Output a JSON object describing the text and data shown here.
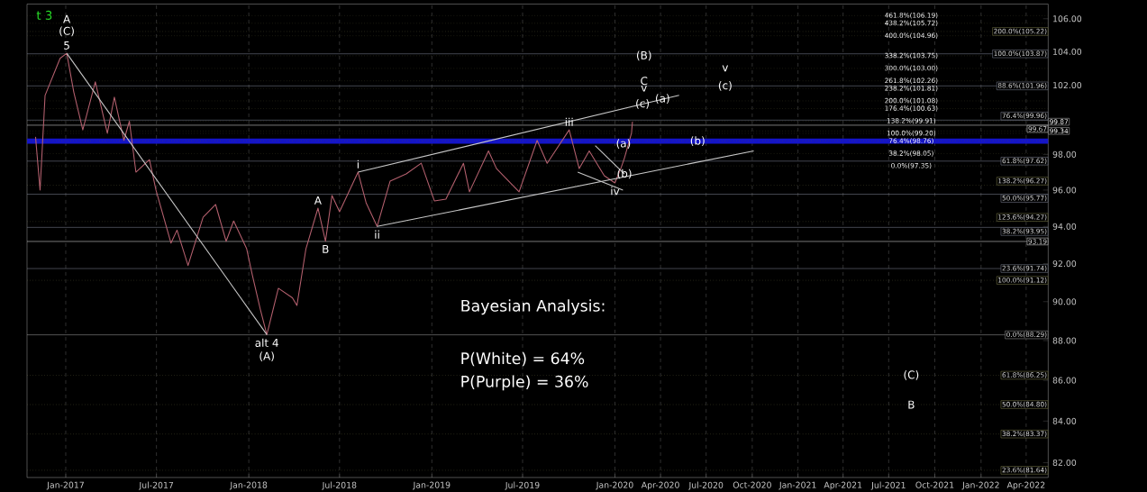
{
  "chart_data": {
    "type": "line",
    "log": true,
    "grid": "x",
    "xlim": [
      "2016-10-15",
      "2022-05-15"
    ],
    "ylim": [
      81.3,
      106.9
    ],
    "xticks": [
      {
        "value": "2017-01-01",
        "label": "Jan-2017"
      },
      {
        "value": "2017-07-01",
        "label": "Jul-2017"
      },
      {
        "value": "2018-01-01",
        "label": "Jan-2018"
      },
      {
        "value": "2018-07-01",
        "label": "Jul-2018"
      },
      {
        "value": "2019-01-01",
        "label": "Jan-2019"
      },
      {
        "value": "2019-07-01",
        "label": "Jul-2019"
      },
      {
        "value": "2020-01-01",
        "label": "Jan-2020"
      },
      {
        "value": "2020-04-01",
        "label": "Apr-2020"
      },
      {
        "value": "2020-07-01",
        "label": "Jul-2020"
      },
      {
        "value": "2020-10-01",
        "label": "Oct-2020"
      },
      {
        "value": "2021-01-01",
        "label": "Jan-2021"
      },
      {
        "value": "2021-04-01",
        "label": "Apr-2021"
      },
      {
        "value": "2021-07-01",
        "label": "Jul-2021"
      },
      {
        "value": "2021-10-01",
        "label": "Oct-2021"
      },
      {
        "value": "2022-01-01",
        "label": "Jan-2022"
      },
      {
        "value": "2022-04-01",
        "label": "Apr-2022"
      }
    ],
    "yticks": [
      {
        "value": 82,
        "label": "82.00"
      },
      {
        "value": 84,
        "label": "84.00"
      },
      {
        "value": 86,
        "label": "86.00"
      },
      {
        "value": 88,
        "label": "88.00"
      },
      {
        "value": 90,
        "label": "90.00"
      },
      {
        "value": 92,
        "label": "92.00"
      },
      {
        "value": 94,
        "label": "94.00"
      },
      {
        "value": 96,
        "label": "96.00"
      },
      {
        "value": 98,
        "label": "98.00"
      },
      {
        "value": 102,
        "label": "102.00"
      },
      {
        "value": 104,
        "label": "104.00"
      },
      {
        "value": 106,
        "label": "106.00"
      }
    ],
    "series": [
      {
        "color": "#b4606e",
        "x": [
          "2016-11-01",
          "2016-11-10",
          "2016-11-20",
          "2016-12-20",
          "2017-01-03",
          "2017-01-17",
          "2017-02-04",
          "2017-03-01",
          "2017-03-25",
          "2017-04-08",
          "2017-04-27",
          "2017-05-08",
          "2017-05-21",
          "2017-06-17",
          "2017-06-30",
          "2017-07-30",
          "2017-08-11",
          "2017-09-02",
          "2017-10-02",
          "2017-10-27",
          "2017-11-17",
          "2017-12-02",
          "2017-12-28",
          "2018-01-08",
          "2018-01-24",
          "2018-02-06",
          "2018-03-01",
          "2018-03-29",
          "2018-04-07",
          "2018-04-25",
          "2018-05-19",
          "2018-06-03",
          "2018-06-16",
          "2018-07-01",
          "2018-08-07",
          "2018-08-23",
          "2018-09-14",
          "2018-10-10",
          "2018-11-11",
          "2018-12-11",
          "2019-01-06",
          "2019-01-29",
          "2019-03-05",
          "2019-03-17",
          "2019-04-24",
          "2019-05-10",
          "2019-06-24",
          "2019-07-30",
          "2019-08-19",
          "2019-10-02",
          "2019-10-22",
          "2019-11-11",
          "2019-12-11",
          "2020-01-01",
          "2020-01-14",
          "2020-01-20",
          "2020-02-03",
          "2020-02-05"
        ],
        "values": [
          99.0,
          96.0,
          101.4,
          103.6,
          103.9,
          101.6,
          99.4,
          102.2,
          99.2,
          101.3,
          98.8,
          99.9,
          97.0,
          97.7,
          96.0,
          93.1,
          93.8,
          91.9,
          94.5,
          95.2,
          93.2,
          94.3,
          92.8,
          91.4,
          89.6,
          88.3,
          90.7,
          90.2,
          89.8,
          92.8,
          95.0,
          93.2,
          95.7,
          94.8,
          97.0,
          95.3,
          94.0,
          96.5,
          96.9,
          97.5,
          95.4,
          95.5,
          97.5,
          95.9,
          98.2,
          97.2,
          95.9,
          98.8,
          97.5,
          99.4,
          97.2,
          98.2,
          96.8,
          96.4,
          97.3,
          97.8,
          99.2,
          99.87
        ]
      },
      {
        "color": "#c8c8c8",
        "x": [
          "2017-01-03",
          "2018-02-06"
        ],
        "values": [
          103.9,
          88.3
        ]
      },
      {
        "color": "#c8c8c8",
        "x": [
          "2018-08-07",
          "2020-05-08"
        ],
        "values": [
          97.0,
          101.4
        ]
      },
      {
        "color": "#c8c8c8",
        "x": [
          "2018-09-14",
          "2020-10-04"
        ],
        "values": [
          94.0,
          98.2
        ]
      },
      {
        "color": "#c8c8c8",
        "x": [
          "2019-10-19",
          "2020-01-17"
        ],
        "values": [
          97.0,
          96.0
        ]
      },
      {
        "color": "#c8c8c8",
        "x": [
          "2019-11-23",
          "2020-01-20"
        ],
        "values": [
          98.5,
          96.9
        ]
      }
    ],
    "ref_lines": [
      {
        "axis": "y",
        "value": 106.19,
        "color": "#5a5a34",
        "line_style": "dotted"
      },
      {
        "axis": "y",
        "value": 105.72,
        "color": "#5a5a34",
        "line_style": "dotted"
      },
      {
        "axis": "y",
        "value": 104.96,
        "color": "#5a5a34",
        "line_style": "dotted"
      },
      {
        "axis": "y",
        "value": 103.75,
        "color": "#5a5a34",
        "line_style": "dotted"
      },
      {
        "axis": "y",
        "value": 103.0,
        "color": "#5a5a34",
        "line_style": "dotted"
      },
      {
        "axis": "y",
        "value": 102.26,
        "color": "#5a5a34",
        "line_style": "dotted"
      },
      {
        "axis": "y",
        "value": 101.81,
        "color": "#5a5a34",
        "line_style": "dotted"
      },
      {
        "axis": "y",
        "value": 101.08,
        "color": "#5a5a34",
        "line_style": "dotted"
      },
      {
        "axis": "y",
        "value": 100.63,
        "color": "#5a5a34",
        "line_style": "dotted"
      },
      {
        "axis": "y",
        "value": 99.91,
        "color": "#5a5a34",
        "line_style": "dotted"
      },
      {
        "axis": "y",
        "value": 99.34,
        "color": "#5a5a34",
        "line_style": "dotted"
      },
      {
        "axis": "y",
        "value": 99.2,
        "color": "#5a5a34",
        "line_style": "dotted"
      },
      {
        "axis": "y",
        "value": 98.76,
        "color": "#5a5a34",
        "line_style": "dotted"
      },
      {
        "axis": "y",
        "value": 98.05,
        "color": "#5a5a34",
        "line_style": "dotted"
      },
      {
        "axis": "y",
        "value": 97.35,
        "color": "#5a5a34",
        "line_style": "dotted"
      },
      {
        "axis": "y",
        "value": 105.22,
        "label": "200.0%(105.22)",
        "color": "#7a7a4a",
        "line_style": "dotted"
      },
      {
        "axis": "y",
        "value": 103.87,
        "label": "100.0%(103.87)",
        "color": "#7c8294",
        "line_style": "solid"
      },
      {
        "axis": "y",
        "value": 101.96,
        "label": "88.6%(101.96)",
        "color": "#7c8294",
        "line_style": "solid"
      },
      {
        "axis": "y",
        "value": 99.96,
        "label": "76.4%(99.96)",
        "color": "#7c8294",
        "line_style": "solid"
      },
      {
        "axis": "y",
        "value": 99.67,
        "label": "99.67",
        "color": "#e0e0e0",
        "line_style": "solid"
      },
      {
        "axis": "y",
        "value": 97.62,
        "label": "61.8%(97.62)",
        "color": "#7c8294",
        "line_style": "solid"
      },
      {
        "axis": "y",
        "value": 96.27,
        "label": "138.2%(96.27)",
        "color": "#7a7a4a",
        "line_style": "dotted"
      },
      {
        "axis": "y",
        "value": 95.77,
        "label": "50.0%(95.77)",
        "color": "#7c8294",
        "line_style": "solid"
      },
      {
        "axis": "y",
        "value": 94.27,
        "label": "123.6%(94.27)",
        "color": "#7a7a4a",
        "line_style": "dotted"
      },
      {
        "axis": "y",
        "value": 93.95,
        "label": "38.2%(93.95)",
        "color": "#7c8294",
        "line_style": "solid"
      },
      {
        "axis": "y",
        "value": 93.19,
        "label": "93.19",
        "color": "#e0e0e0",
        "line_style": "solid"
      },
      {
        "axis": "y",
        "value": 91.74,
        "label": "23.6%(91.74)",
        "color": "#7c8294",
        "line_style": "solid"
      },
      {
        "axis": "y",
        "value": 91.12,
        "label": "100.0%(91.12)",
        "color": "#7a7a4a",
        "line_style": "dotted"
      },
      {
        "axis": "y",
        "value": 88.29,
        "label": "0.0%(88.29)",
        "color": "#9a9a9a",
        "line_style": "solid"
      },
      {
        "axis": "y",
        "value": 86.25,
        "label": "61.8%(86.25)",
        "color": "#7a7a4a",
        "line_style": "dotted"
      },
      {
        "axis": "y",
        "value": 84.8,
        "label": "50.0%(84.80)",
        "color": "#7a7a4a",
        "line_style": "dotted"
      },
      {
        "axis": "y",
        "value": 83.37,
        "label": "38.2%(83.37)",
        "color": "#7a7a4a",
        "line_style": "dotted"
      },
      {
        "axis": "y",
        "value": 81.64,
        "label": "23.6%(81.64)",
        "color": "#7a7a4a",
        "line_style": "dotted"
      }
    ],
    "bands": [
      {
        "axis": "y",
        "from": 98.6,
        "to": 98.9,
        "color": "#1414c8"
      }
    ],
    "annotations": [
      "t 3",
      "Bayesian Analysis:",
      "P(White) = 64%",
      "P(Purple) = 36%",
      {
        "text": "A",
        "x": "2017-01-03",
        "y": 103.9
      },
      {
        "text": "(C)",
        "x": "2017-01-03",
        "y": 103.9
      },
      {
        "text": "5",
        "x": "2017-01-03",
        "y": 103.9
      },
      {
        "text": "alt 4",
        "x": "2018-02-06",
        "y": 88.3
      },
      {
        "text": "(A)",
        "x": "2018-02-06",
        "y": 88.3
      },
      {
        "text": "A",
        "x": "2018-05-19",
        "y": 95.0
      },
      {
        "text": "B",
        "x": "2018-06-03",
        "y": 93.2
      },
      {
        "text": "i",
        "x": "2018-08-07",
        "y": 97.0
      },
      {
        "text": "ii",
        "x": "2018-09-14",
        "y": 94.0
      },
      {
        "text": "iii",
        "x": "2019-10-02",
        "y": 99.4
      },
      {
        "text": "iv",
        "x": "2020-01-01",
        "y": 96.4
      },
      {
        "text": "(a)",
        "x": "2020-01-18",
        "y": 98.6
      },
      {
        "text": "(b)",
        "x": "2020-01-20",
        "y": 96.9
      },
      {
        "text": "(b)",
        "x": "2020-06-14",
        "y": 98.75
      },
      {
        "text": "(B)",
        "x": "2020-02-28",
        "y": 103.75
      },
      {
        "text": "C",
        "x": "2020-02-28",
        "y": 102.26
      },
      {
        "text": "v",
        "x": "2020-02-28",
        "y": 101.81
      },
      {
        "text": "(c)",
        "x": "2020-02-25",
        "y": 100.9
      },
      {
        "text": "(a)",
        "x": "2020-04-05",
        "y": 101.2
      },
      {
        "text": "v",
        "x": "2020-08-08",
        "y": 103.0
      },
      {
        "text": "(c)",
        "x": "2020-08-08",
        "y": 101.96
      },
      {
        "text": "(C)",
        "x": "2021-08-15",
        "y": 86.25
      },
      {
        "text": "B",
        "x": "2021-08-15",
        "y": 84.8
      },
      {
        "text": "461.8%(106.19)",
        "x": "2021-08-15",
        "y": 106.19
      },
      {
        "text": "438.2%(105.72)",
        "x": "2021-08-15",
        "y": 105.72
      },
      {
        "text": "400.0%(104.96)",
        "x": "2021-08-15",
        "y": 104.96
      },
      {
        "text": "338.2%(103.75)",
        "x": "2021-08-15",
        "y": 103.75
      },
      {
        "text": "300.0%(103.00)",
        "x": "2021-08-15",
        "y": 103.0
      },
      {
        "text": "261.8%(102.26)",
        "x": "2021-08-15",
        "y": 102.26
      },
      {
        "text": "238.2%(101.81)",
        "x": "2021-08-15",
        "y": 101.81
      },
      {
        "text": "200.0%(101.08)",
        "x": "2021-08-15",
        "y": 101.08
      },
      {
        "text": "176.4%(100.63)",
        "x": "2021-08-15",
        "y": 100.63
      },
      {
        "text": "138.2%(99.91)",
        "x": "2021-08-15",
        "y": 99.91
      },
      {
        "text": "100.0%(99.20)",
        "x": "2021-08-15",
        "y": 99.2
      },
      {
        "text": "76.4%(98.76)",
        "x": "2021-08-15",
        "y": 98.76
      },
      {
        "text": "38.2%(98.05)",
        "x": "2021-08-15",
        "y": 98.05
      },
      {
        "text": "0.0%(97.35)",
        "x": "2021-08-15",
        "y": 97.35
      },
      {
        "text": "99.87",
        "x": "2022-05-15",
        "y": 99.87
      },
      {
        "text": "99.34",
        "x": "2022-05-15",
        "y": 99.34
      }
    ]
  }
}
